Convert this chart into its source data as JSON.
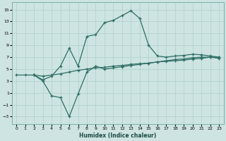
{
  "xlabel": "Humidex (Indice chaleur)",
  "bg_color": "#cde4e2",
  "grid_color": "#aecfcc",
  "line_color": "#2d6e65",
  "xlim": [
    -0.5,
    23.5
  ],
  "ylim": [
    -4.2,
    16.2
  ],
  "yticks": [
    -3,
    -1,
    1,
    3,
    5,
    7,
    9,
    11,
    13,
    15
  ],
  "xticks": [
    0,
    1,
    2,
    3,
    4,
    5,
    6,
    7,
    8,
    9,
    10,
    11,
    12,
    13,
    14,
    15,
    16,
    17,
    18,
    19,
    20,
    21,
    22,
    23
  ],
  "line_upper_x": [
    2,
    3,
    4,
    5,
    6,
    7,
    8,
    9,
    10,
    11,
    12,
    13,
    14,
    15,
    16,
    17,
    18,
    19,
    20,
    21,
    22,
    23
  ],
  "line_upper_y": [
    4.0,
    3.2,
    3.8,
    5.5,
    8.5,
    5.5,
    10.5,
    10.8,
    12.8,
    13.2,
    14.0,
    14.8,
    13.5,
    9.0,
    7.2,
    7.0,
    7.2,
    7.3,
    7.5,
    7.4,
    7.2,
    7.0
  ],
  "line_mid_x": [
    0,
    1,
    2,
    3,
    4,
    5,
    6,
    7,
    8,
    9,
    10,
    11,
    12,
    13,
    14,
    15,
    16,
    17,
    18,
    19,
    20,
    21,
    22,
    23
  ],
  "line_mid_y": [
    4.0,
    4.0,
    4.0,
    3.8,
    4.0,
    4.2,
    4.5,
    4.8,
    5.0,
    5.2,
    5.3,
    5.5,
    5.6,
    5.8,
    5.9,
    6.0,
    6.2,
    6.3,
    6.4,
    6.5,
    6.7,
    6.8,
    7.0,
    7.0
  ],
  "line_lower_x": [
    2,
    3,
    4,
    5,
    6,
    7,
    8,
    9,
    10,
    11,
    12,
    13,
    14,
    15,
    16,
    17,
    18,
    19,
    20,
    21,
    22,
    23
  ],
  "line_lower_y": [
    4.0,
    3.0,
    0.5,
    0.2,
    -3.0,
    0.8,
    4.5,
    5.5,
    5.0,
    5.2,
    5.4,
    5.6,
    5.8,
    6.0,
    6.2,
    6.4,
    6.6,
    6.7,
    6.9,
    7.0,
    7.0,
    6.8
  ]
}
